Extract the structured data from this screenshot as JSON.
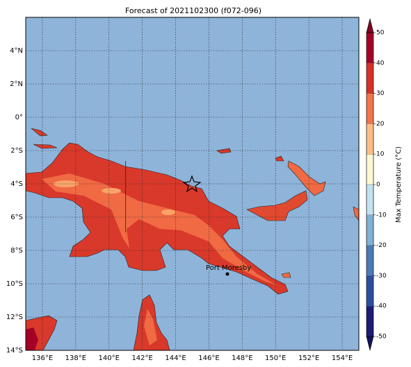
{
  "map": {
    "title": "Forecast of 2021102300 (f072-096)",
    "xlim": [
      135,
      155
    ],
    "ylim": [
      -14,
      6
    ],
    "xticks": [
      {
        "value": 136,
        "label": "136°E"
      },
      {
        "value": 138,
        "label": "138°E"
      },
      {
        "value": 140,
        "label": "140°E"
      },
      {
        "value": 142,
        "label": "142°E"
      },
      {
        "value": 144,
        "label": "144°E"
      },
      {
        "value": 146,
        "label": "146°E"
      },
      {
        "value": 148,
        "label": "148°E"
      },
      {
        "value": 150,
        "label": "150°E"
      },
      {
        "value": 152,
        "label": "152°E"
      },
      {
        "value": 154,
        "label": "154°E"
      }
    ],
    "yticks": [
      {
        "value": 4,
        "label": "4°N"
      },
      {
        "value": 2,
        "label": "2°N"
      },
      {
        "value": 0,
        "label": "0°"
      },
      {
        "value": -2,
        "label": "2°S"
      },
      {
        "value": -4,
        "label": "4°S"
      },
      {
        "value": -6,
        "label": "6°S"
      },
      {
        "value": -8,
        "label": "8°S"
      },
      {
        "value": -10,
        "label": "10°S"
      },
      {
        "value": -12,
        "label": "12°S"
      },
      {
        "value": -14,
        "label": "14°S"
      }
    ],
    "place": {
      "name": "Port Moresby"
    },
    "colorbar": {
      "label": "Max Temperature (°C)",
      "lim": [
        -50,
        50
      ],
      "ticks": [
        50,
        40,
        30,
        20,
        10,
        0,
        -10,
        -20,
        -30,
        -40,
        -50
      ],
      "colors": [
        "#1c1c72",
        "#2b4e9f",
        "#4a7bb7",
        "#80b1d5",
        "#c3e2ef",
        "#fdf8cf",
        "#fdbe86",
        "#f4744b",
        "#d73027",
        "#a50026"
      ],
      "extend_colors": [
        "#131360",
        "#7f0020"
      ]
    }
  }
}
